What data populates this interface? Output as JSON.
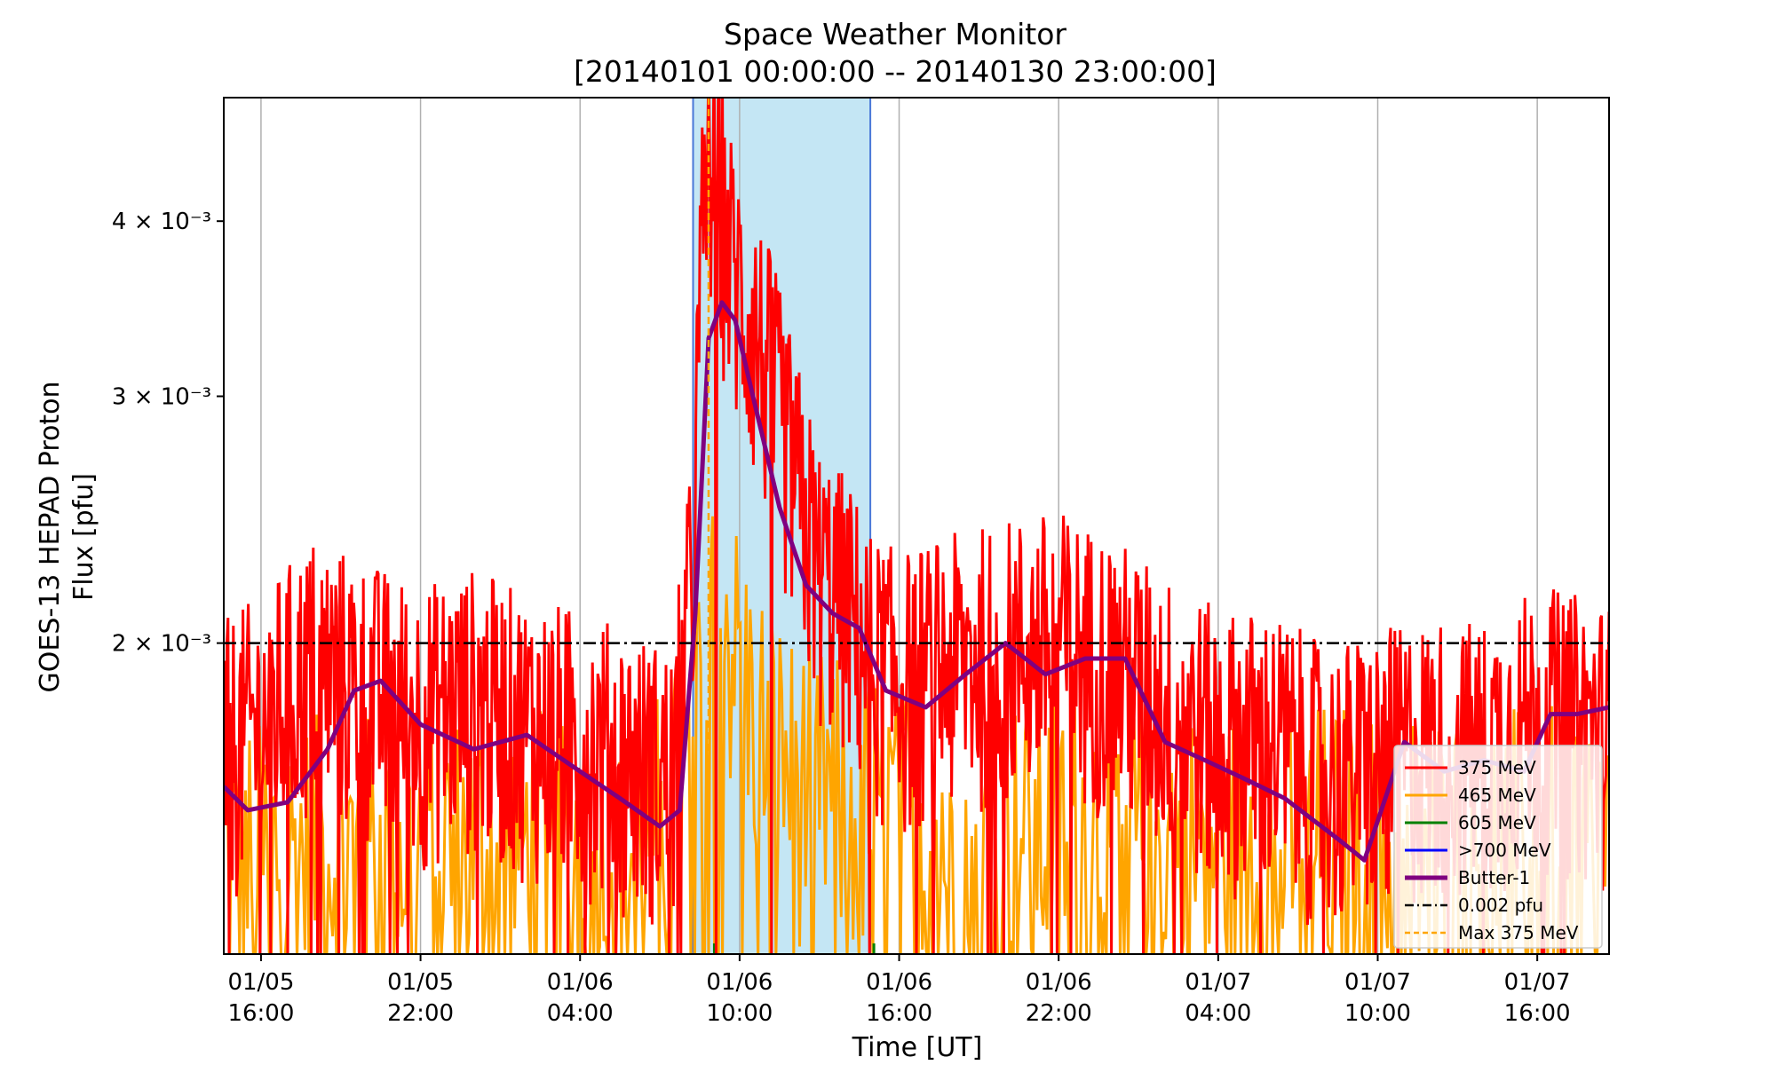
{
  "chart_data": {
    "type": "line",
    "title": "Space Weather Monitor",
    "subtitle": "[20140101 00:00:00 -- 20140130 23:00:00]",
    "xlabel": "Time [UT]",
    "ylabel_line1": "GOES-13 HEPAD Proton",
    "ylabel_line2": "Flux [pfu]",
    "y_scale": "log",
    "ylim": [
      0.0012,
      0.0049
    ],
    "y_ticks": [
      {
        "value": 0.002,
        "label": "2 × 10⁻³"
      },
      {
        "value": 0.003,
        "label": "3 × 10⁻³"
      },
      {
        "value": 0.004,
        "label": "4 × 10⁻³"
      }
    ],
    "xlim": [
      "2014-01-05 14:36",
      "2014-01-07 18:42"
    ],
    "x_ticks": [
      {
        "time": "2014-01-05 16:00",
        "date": "01/05",
        "hour": "16:00"
      },
      {
        "time": "2014-01-05 22:00",
        "date": "01/05",
        "hour": "22:00"
      },
      {
        "time": "2014-01-06 04:00",
        "date": "01/06",
        "hour": "04:00"
      },
      {
        "time": "2014-01-06 10:00",
        "date": "01/06",
        "hour": "10:00"
      },
      {
        "time": "2014-01-06 16:00",
        "date": "01/06",
        "hour": "16:00"
      },
      {
        "time": "2014-01-06 22:00",
        "date": "01/06",
        "hour": "22:00"
      },
      {
        "time": "2014-01-07 04:00",
        "date": "01/07",
        "hour": "04:00"
      },
      {
        "time": "2014-01-07 10:00",
        "date": "01/07",
        "hour": "10:00"
      },
      {
        "time": "2014-01-07 16:00",
        "date": "01/07",
        "hour": "16:00"
      }
    ],
    "grid": "vertical",
    "legend_position": "lower-right",
    "event_span": {
      "start": "2014-01-06 08:15",
      "end": "2014-01-06 14:55",
      "color": "#c4e6f4",
      "edge_color": "#4a78d8"
    },
    "threshold": {
      "value": 0.002,
      "label": "0.002 pfu",
      "color": "#000000"
    },
    "max_marker": {
      "time": "2014-01-06 08:50",
      "label": "Max 375 MeV",
      "color": "#ffa500"
    },
    "series": [
      {
        "name": "375 MeV",
        "color": "#ff0000",
        "x": [
          "2014-01-05 14:36",
          "2014-01-05 16:00",
          "2014-01-05 18:00",
          "2014-01-05 20:00",
          "2014-01-05 22:00",
          "2014-01-06 00:00",
          "2014-01-06 02:00",
          "2014-01-06 04:00",
          "2014-01-06 06:00",
          "2014-01-06 07:30",
          "2014-01-06 08:15",
          "2014-01-06 08:40",
          "2014-01-06 09:00",
          "2014-01-06 09:30",
          "2014-01-06 10:00",
          "2014-01-06 11:00",
          "2014-01-06 12:00",
          "2014-01-06 13:00",
          "2014-01-06 14:00",
          "2014-01-06 15:00",
          "2014-01-06 16:00",
          "2014-01-06 18:00",
          "2014-01-06 20:00",
          "2014-01-06 22:00",
          "2014-01-07 00:00",
          "2014-01-07 02:00",
          "2014-01-07 04:00",
          "2014-01-07 06:00",
          "2014-01-07 08:00",
          "2014-01-07 10:00",
          "2014-01-07 12:00",
          "2014-01-07 14:00",
          "2014-01-07 16:00",
          "2014-01-07 18:42"
        ],
        "values": [
          0.00165,
          0.00172,
          0.0019,
          0.00182,
          0.00175,
          0.0018,
          0.00172,
          0.00168,
          0.00162,
          0.00158,
          0.0022,
          0.0041,
          0.0044,
          0.0038,
          0.0035,
          0.0031,
          0.0026,
          0.0022,
          0.0021,
          0.0019,
          0.00185,
          0.0019,
          0.00195,
          0.00198,
          0.0019,
          0.00178,
          0.00168,
          0.00168,
          0.00158,
          0.00162,
          0.00166,
          0.00165,
          0.00175,
          0.0017
        ]
      },
      {
        "name": "465 MeV",
        "color": "#ffa500",
        "x": [
          "2014-01-05 14:36",
          "2014-01-05 18:00",
          "2014-01-05 22:00",
          "2014-01-06 02:00",
          "2014-01-06 06:00",
          "2014-01-06 08:20",
          "2014-01-06 08:50",
          "2014-01-06 09:30",
          "2014-01-06 10:30",
          "2014-01-06 12:00",
          "2014-01-06 14:00",
          "2014-01-06 16:00",
          "2014-01-06 20:00",
          "2014-01-07 00:00",
          "2014-01-07 04:00",
          "2014-01-07 08:00",
          "2014-01-07 12:00",
          "2014-01-07 16:00",
          "2014-01-07 18:42"
        ],
        "values": [
          0.00128,
          0.0013,
          0.00131,
          0.00132,
          0.0013,
          0.0015,
          0.00225,
          0.0019,
          0.00165,
          0.00148,
          0.00142,
          0.00138,
          0.00134,
          0.00136,
          0.0013,
          0.00133,
          0.00131,
          0.00132,
          0.00133
        ]
      },
      {
        "name": "605 MeV",
        "color": "#008000",
        "x": [
          "2014-01-06 09:00",
          "2014-01-06 09:05",
          "2014-01-06 15:00",
          "2014-01-06 15:05"
        ],
        "values": [
          0.001215,
          0.001215,
          0.001212,
          0.001212
        ]
      },
      {
        "name": ">700 MeV",
        "color": "#0000ff",
        "x": [],
        "values": []
      },
      {
        "name": "Butter-1",
        "color": "#800080",
        "x": [
          "2014-01-05 14:36",
          "2014-01-05 15:30",
          "2014-01-05 17:00",
          "2014-01-05 18:30",
          "2014-01-05 19:30",
          "2014-01-05 20:30",
          "2014-01-05 22:00",
          "2014-01-06 00:00",
          "2014-01-06 02:00",
          "2014-01-06 04:00",
          "2014-01-06 05:30",
          "2014-01-06 07:00",
          "2014-01-06 07:45",
          "2014-01-06 08:20",
          "2014-01-06 08:50",
          "2014-01-06 09:20",
          "2014-01-06 09:50",
          "2014-01-06 10:30",
          "2014-01-06 11:30",
          "2014-01-06 12:30",
          "2014-01-06 13:30",
          "2014-01-06 14:30",
          "2014-01-06 15:30",
          "2014-01-06 17:00",
          "2014-01-06 18:30",
          "2014-01-06 20:00",
          "2014-01-06 21:30",
          "2014-01-06 23:00",
          "2014-01-07 00:30",
          "2014-01-07 02:00",
          "2014-01-07 03:30",
          "2014-01-07 05:00",
          "2014-01-07 06:30",
          "2014-01-07 08:30",
          "2014-01-07 09:30",
          "2014-01-07 11:00",
          "2014-01-07 12:30",
          "2014-01-07 14:00",
          "2014-01-07 15:30",
          "2014-01-07 16:30",
          "2014-01-07 17:30",
          "2014-01-07 18:42"
        ],
        "values": [
          0.00158,
          0.00152,
          0.00154,
          0.00168,
          0.00185,
          0.00188,
          0.00175,
          0.00168,
          0.00172,
          0.00162,
          0.00155,
          0.00148,
          0.00152,
          0.0021,
          0.0033,
          0.0035,
          0.0034,
          0.003,
          0.0025,
          0.0022,
          0.0021,
          0.00205,
          0.00185,
          0.0018,
          0.0019,
          0.002,
          0.0019,
          0.00195,
          0.00195,
          0.0017,
          0.00165,
          0.0016,
          0.00155,
          0.00145,
          0.0014,
          0.0017,
          0.00162,
          0.00165,
          0.00162,
          0.00178,
          0.00178,
          0.0018
        ]
      }
    ],
    "legend": [
      "375 MeV",
      "465 MeV",
      "605 MeV",
      ">700 MeV",
      "Butter-1",
      "0.002 pfu",
      "Max 375 MeV"
    ]
  }
}
